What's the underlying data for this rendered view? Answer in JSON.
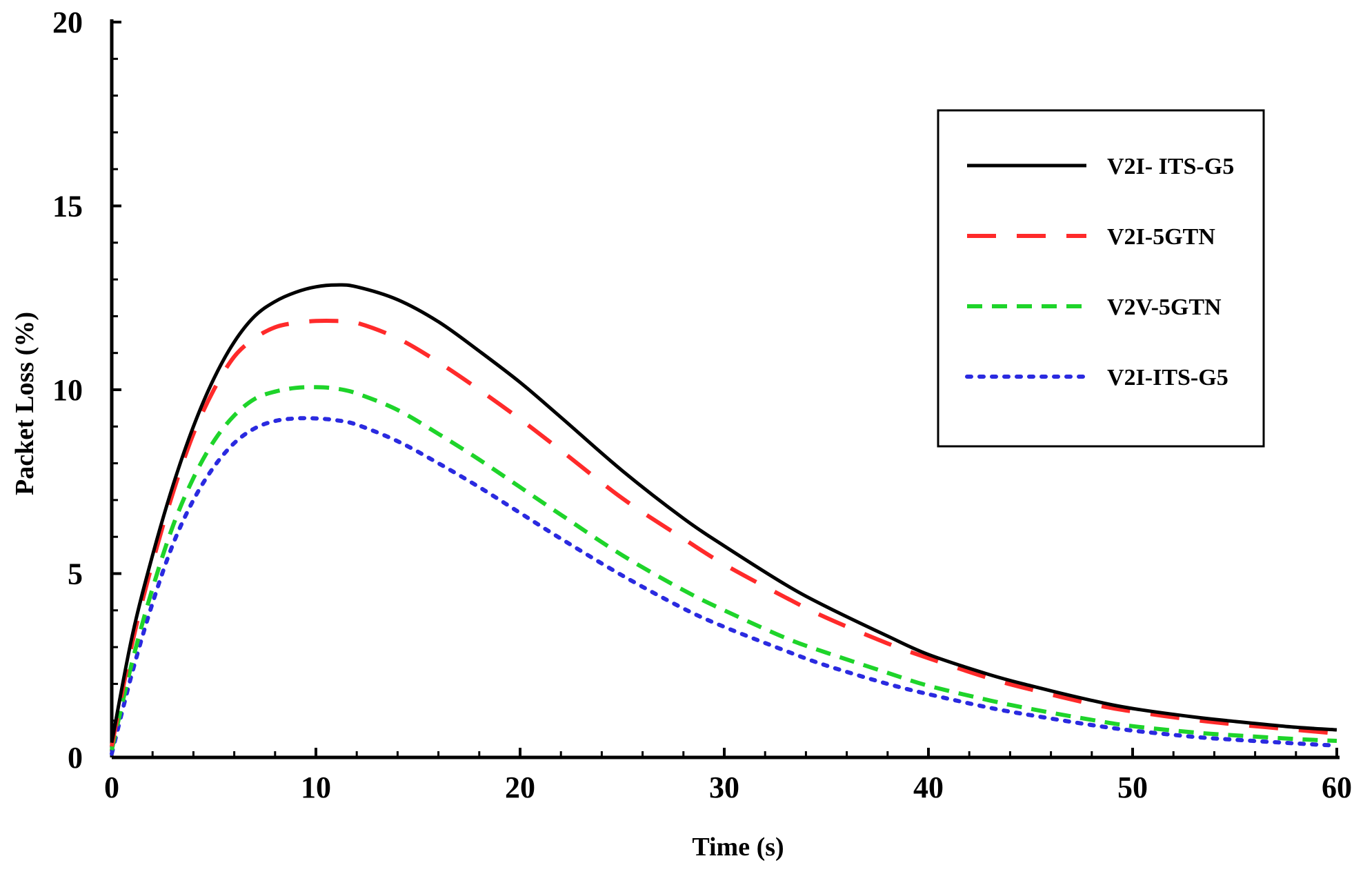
{
  "chart_data": {
    "type": "line",
    "title": "",
    "xlabel": "Time (s)",
    "ylabel": "Packet Loss (%)",
    "xlim": [
      0,
      60
    ],
    "ylim": [
      0,
      20
    ],
    "xticks": [
      0,
      10,
      20,
      30,
      40,
      50,
      60
    ],
    "yticks": [
      0,
      5,
      10,
      15,
      20
    ],
    "grid": false,
    "legend_position": "top-right",
    "series": [
      {
        "name": "V2I- ITS-G5",
        "color": "#000000",
        "dash": "solid",
        "x": [
          0,
          1,
          2,
          3,
          4,
          5,
          6,
          7,
          8,
          9,
          10,
          11,
          12,
          14,
          16,
          18,
          20,
          22,
          25,
          28,
          30,
          33,
          35,
          38,
          40,
          43,
          45,
          48,
          50,
          53,
          55,
          58,
          60
        ],
        "y": [
          0.4,
          3.3,
          5.5,
          7.4,
          9.0,
          10.3,
          11.3,
          12.0,
          12.4,
          12.65,
          12.8,
          12.85,
          12.8,
          12.45,
          11.85,
          11.05,
          10.2,
          9.25,
          7.8,
          6.5,
          5.75,
          4.7,
          4.1,
          3.3,
          2.8,
          2.25,
          1.95,
          1.55,
          1.33,
          1.1,
          0.98,
          0.82,
          0.75
        ]
      },
      {
        "name": "V2I-5GTN",
        "color": "#ff2a2a",
        "dash": "long-dash",
        "x": [
          0,
          1,
          2,
          3,
          4,
          5,
          6,
          7,
          8,
          9,
          10,
          11,
          12,
          14,
          16,
          18,
          20,
          22,
          25,
          28,
          30,
          33,
          35,
          38,
          40,
          43,
          45,
          48,
          50,
          53,
          55,
          58,
          60
        ],
        "y": [
          0.3,
          3.1,
          5.3,
          7.2,
          8.8,
          10.0,
          10.9,
          11.4,
          11.7,
          11.82,
          11.87,
          11.87,
          11.82,
          11.4,
          10.75,
          10.0,
          9.2,
          8.35,
          7.05,
          5.95,
          5.25,
          4.35,
          3.8,
          3.1,
          2.7,
          2.15,
          1.85,
          1.45,
          1.25,
          1.02,
          0.9,
          0.75,
          0.65
        ]
      },
      {
        "name": "V2V-5GTN",
        "color": "#1ed42a",
        "dash": "dash",
        "x": [
          0,
          1,
          2,
          3,
          4,
          5,
          6,
          7,
          8,
          9,
          10,
          11,
          12,
          14,
          16,
          18,
          20,
          22,
          25,
          28,
          30,
          33,
          35,
          38,
          40,
          43,
          45,
          48,
          50,
          53,
          55,
          58,
          60
        ],
        "y": [
          0.2,
          2.6,
          4.6,
          6.3,
          7.6,
          8.6,
          9.3,
          9.75,
          9.95,
          10.05,
          10.07,
          10.03,
          9.9,
          9.45,
          8.8,
          8.1,
          7.35,
          6.6,
          5.5,
          4.55,
          4.0,
          3.25,
          2.85,
          2.3,
          1.95,
          1.55,
          1.32,
          1.02,
          0.85,
          0.68,
          0.6,
          0.5,
          0.45
        ]
      },
      {
        "name": "V2I-ITS-G5",
        "color": "#2a2ae0",
        "dash": "dot",
        "x": [
          0,
          1,
          2,
          3,
          4,
          5,
          6,
          7,
          8,
          9,
          10,
          11,
          12,
          14,
          16,
          18,
          20,
          22,
          25,
          28,
          30,
          33,
          35,
          38,
          40,
          43,
          45,
          48,
          50,
          53,
          55,
          58,
          60
        ],
        "y": [
          0.1,
          2.3,
          4.2,
          5.8,
          7.0,
          7.9,
          8.55,
          8.95,
          9.15,
          9.22,
          9.22,
          9.17,
          9.05,
          8.6,
          8.0,
          7.35,
          6.65,
          5.95,
          4.95,
          4.05,
          3.55,
          2.9,
          2.5,
          2.0,
          1.72,
          1.35,
          1.15,
          0.88,
          0.73,
          0.56,
          0.48,
          0.38,
          0.32
        ]
      }
    ]
  }
}
